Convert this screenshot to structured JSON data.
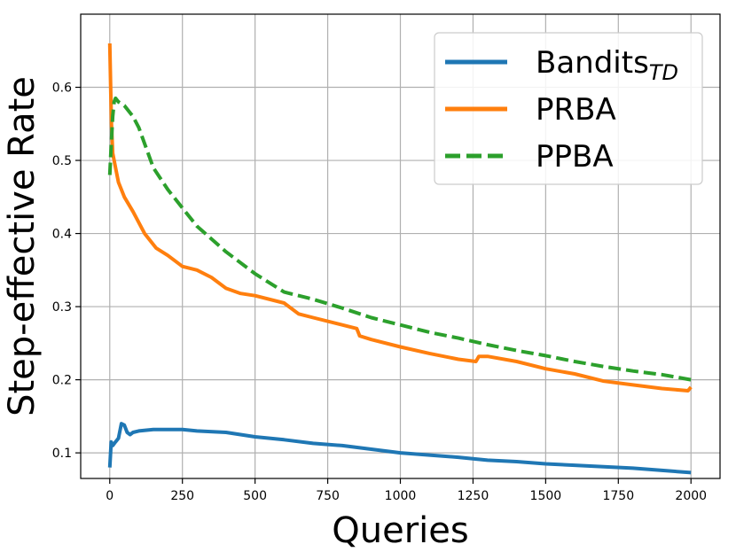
{
  "chart_data": {
    "type": "line",
    "xlabel": "Queries",
    "ylabel": "Step-effective Rate",
    "xlim": [
      -100,
      2100
    ],
    "ylim": [
      0.065,
      0.7
    ],
    "xticks": [
      0,
      250,
      500,
      750,
      1000,
      1250,
      1500,
      1750,
      2000
    ],
    "yticks": [
      0.1,
      0.2,
      0.3,
      0.4,
      0.5,
      0.6
    ],
    "xtick_labels": [
      "0",
      "250",
      "500",
      "750",
      "1000",
      "1250",
      "1500",
      "1750",
      "2000"
    ],
    "ytick_labels": [
      "0.1",
      "0.2",
      "0.3",
      "0.4",
      "0.5",
      "0.6"
    ],
    "grid": true,
    "legend_position": "top-right",
    "series": [
      {
        "name": "Bandits",
        "name_subscript": "TD",
        "color": "#1f77b4",
        "style": "solid",
        "x": [
          0,
          5,
          10,
          20,
          30,
          40,
          50,
          60,
          70,
          80,
          100,
          150,
          200,
          250,
          300,
          400,
          500,
          600,
          700,
          800,
          900,
          1000,
          1100,
          1200,
          1300,
          1400,
          1500,
          1600,
          1700,
          1800,
          1900,
          2000
        ],
        "y": [
          0.08,
          0.115,
          0.11,
          0.115,
          0.12,
          0.14,
          0.138,
          0.128,
          0.125,
          0.128,
          0.13,
          0.132,
          0.132,
          0.132,
          0.13,
          0.128,
          0.122,
          0.118,
          0.113,
          0.11,
          0.105,
          0.1,
          0.097,
          0.094,
          0.09,
          0.088,
          0.085,
          0.083,
          0.081,
          0.079,
          0.076,
          0.073
        ]
      },
      {
        "name": "PRBA",
        "color": "#ff7f0e",
        "style": "solid",
        "x": [
          0,
          3,
          6,
          10,
          15,
          20,
          30,
          50,
          80,
          120,
          160,
          200,
          250,
          300,
          350,
          400,
          450,
          500,
          600,
          650,
          700,
          800,
          850,
          860,
          900,
          1000,
          1100,
          1200,
          1260,
          1270,
          1300,
          1400,
          1500,
          1600,
          1700,
          1800,
          1900,
          1990,
          2000
        ],
        "y": [
          0.66,
          0.6,
          0.55,
          0.51,
          0.5,
          0.49,
          0.47,
          0.45,
          0.43,
          0.4,
          0.38,
          0.37,
          0.355,
          0.35,
          0.34,
          0.325,
          0.318,
          0.315,
          0.305,
          0.29,
          0.285,
          0.275,
          0.27,
          0.26,
          0.255,
          0.245,
          0.236,
          0.228,
          0.225,
          0.232,
          0.232,
          0.225,
          0.215,
          0.208,
          0.198,
          0.193,
          0.188,
          0.185,
          0.19
        ]
      },
      {
        "name": "PPBA",
        "color": "#2ca02c",
        "style": "dashed",
        "x": [
          0,
          5,
          10,
          15,
          20,
          30,
          50,
          80,
          100,
          150,
          200,
          250,
          300,
          400,
          500,
          600,
          700,
          800,
          900,
          1000,
          1100,
          1200,
          1300,
          1400,
          1500,
          1600,
          1700,
          1800,
          1900,
          2000
        ],
        "y": [
          0.48,
          0.52,
          0.56,
          0.58,
          0.585,
          0.58,
          0.575,
          0.56,
          0.545,
          0.49,
          0.46,
          0.435,
          0.41,
          0.375,
          0.345,
          0.32,
          0.31,
          0.298,
          0.285,
          0.275,
          0.265,
          0.257,
          0.248,
          0.24,
          0.233,
          0.225,
          0.218,
          0.212,
          0.207,
          0.2
        ]
      }
    ]
  }
}
